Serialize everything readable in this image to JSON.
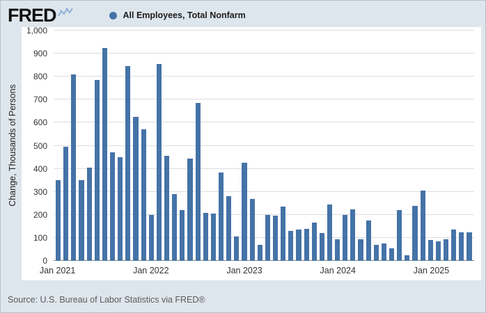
{
  "header": {
    "logo_text": "FRED",
    "legend": {
      "label": "All Employees, Total Nonfarm",
      "dot_color": "#4573a7"
    }
  },
  "chart_data": {
    "type": "bar",
    "title": "All Employees, Total Nonfarm",
    "xlabel": "",
    "ylabel": "Change, Thousands of Persons",
    "ylim": [
      0,
      1000
    ],
    "grid": true,
    "legend_position": "top",
    "bar_color": "#4573a7",
    "ytick_values": [
      0,
      100,
      200,
      300,
      400,
      500,
      600,
      700,
      800,
      900,
      1000
    ],
    "ytick_labels": [
      "0",
      "100",
      "200",
      "300",
      "400",
      "500",
      "600",
      "700",
      "800",
      "900",
      "1,000"
    ],
    "categories": [
      "2021-01",
      "2021-02",
      "2021-03",
      "2021-04",
      "2021-05",
      "2021-06",
      "2021-07",
      "2021-08",
      "2021-09",
      "2021-10",
      "2021-11",
      "2021-12",
      "2022-01",
      "2022-02",
      "2022-03",
      "2022-04",
      "2022-05",
      "2022-06",
      "2022-07",
      "2022-08",
      "2022-09",
      "2022-10",
      "2022-11",
      "2022-12",
      "2023-01",
      "2023-02",
      "2023-03",
      "2023-04",
      "2023-05",
      "2023-06",
      "2023-07",
      "2023-08",
      "2023-09",
      "2023-10",
      "2023-11",
      "2023-12",
      "2024-01",
      "2024-02",
      "2024-03",
      "2024-04",
      "2024-05",
      "2024-06",
      "2024-07",
      "2024-08",
      "2024-09",
      "2024-10",
      "2024-11",
      "2024-12",
      "2025-01",
      "2025-02",
      "2025-03",
      "2025-04",
      "2025-05",
      "2025-06"
    ],
    "values": [
      350,
      495,
      810,
      350,
      405,
      785,
      925,
      470,
      450,
      845,
      625,
      570,
      200,
      855,
      455,
      290,
      220,
      445,
      685,
      210,
      205,
      385,
      280,
      105,
      425,
      270,
      70,
      200,
      195,
      235,
      130,
      135,
      140,
      165,
      120,
      245,
      95,
      200,
      225,
      95,
      175,
      70,
      75,
      55,
      220,
      25,
      240,
      305,
      90,
      85,
      95,
      135,
      125,
      125
    ],
    "xticks": [
      {
        "label": "Jan 2021",
        "index": 0
      },
      {
        "label": "Jan 2022",
        "index": 12
      },
      {
        "label": "Jan 2023",
        "index": 24
      },
      {
        "label": "Jan 2024",
        "index": 36
      },
      {
        "label": "Jan 2025",
        "index": 48
      }
    ]
  },
  "footer": {
    "source": "Source: U.S. Bureau of Labor Statistics via FRED®"
  },
  "colors": {
    "page_bg": "#dee6ed",
    "plot_bg": "#ffffff",
    "gridline": "#dcdcdc",
    "axis_line": "#7f7f7f",
    "bar": "#4573a7",
    "text": "#333333",
    "source_text": "#5b5b5b"
  }
}
